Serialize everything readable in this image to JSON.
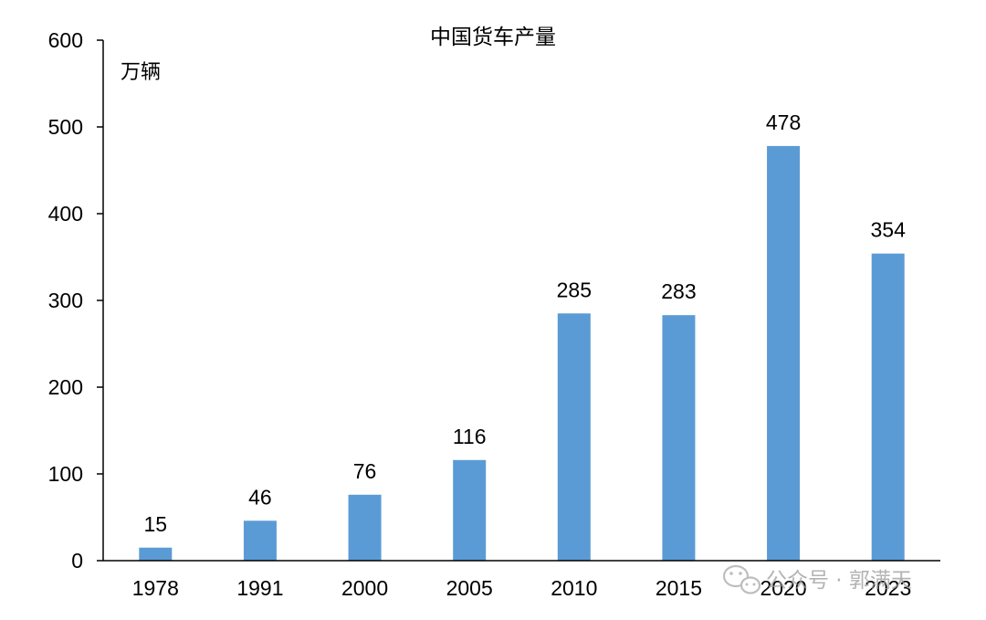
{
  "chart_data": {
    "type": "bar",
    "title": "中国货车产量",
    "ylabel": "万辆",
    "xlabel": "",
    "categories": [
      "1978",
      "1991",
      "2000",
      "2005",
      "2010",
      "2015",
      "2020",
      "2023"
    ],
    "values": [
      15,
      46,
      76,
      116,
      285,
      283,
      478,
      354
    ],
    "data_labels": [
      "15",
      "46",
      "76",
      "116",
      "285",
      "283",
      "478",
      "354"
    ],
    "ylim": [
      0,
      600
    ],
    "yticks": [
      0,
      100,
      200,
      300,
      400,
      500,
      600
    ],
    "ytick_labels": [
      "0",
      "100",
      "200",
      "300",
      "400",
      "500",
      "600"
    ],
    "bar_color": "#5b9bd5",
    "grid": false,
    "legend": "none"
  },
  "watermark": {
    "text": "公众号 · 郭满天",
    "icon": "wechat-icon",
    "color": "#9a9a9a"
  }
}
